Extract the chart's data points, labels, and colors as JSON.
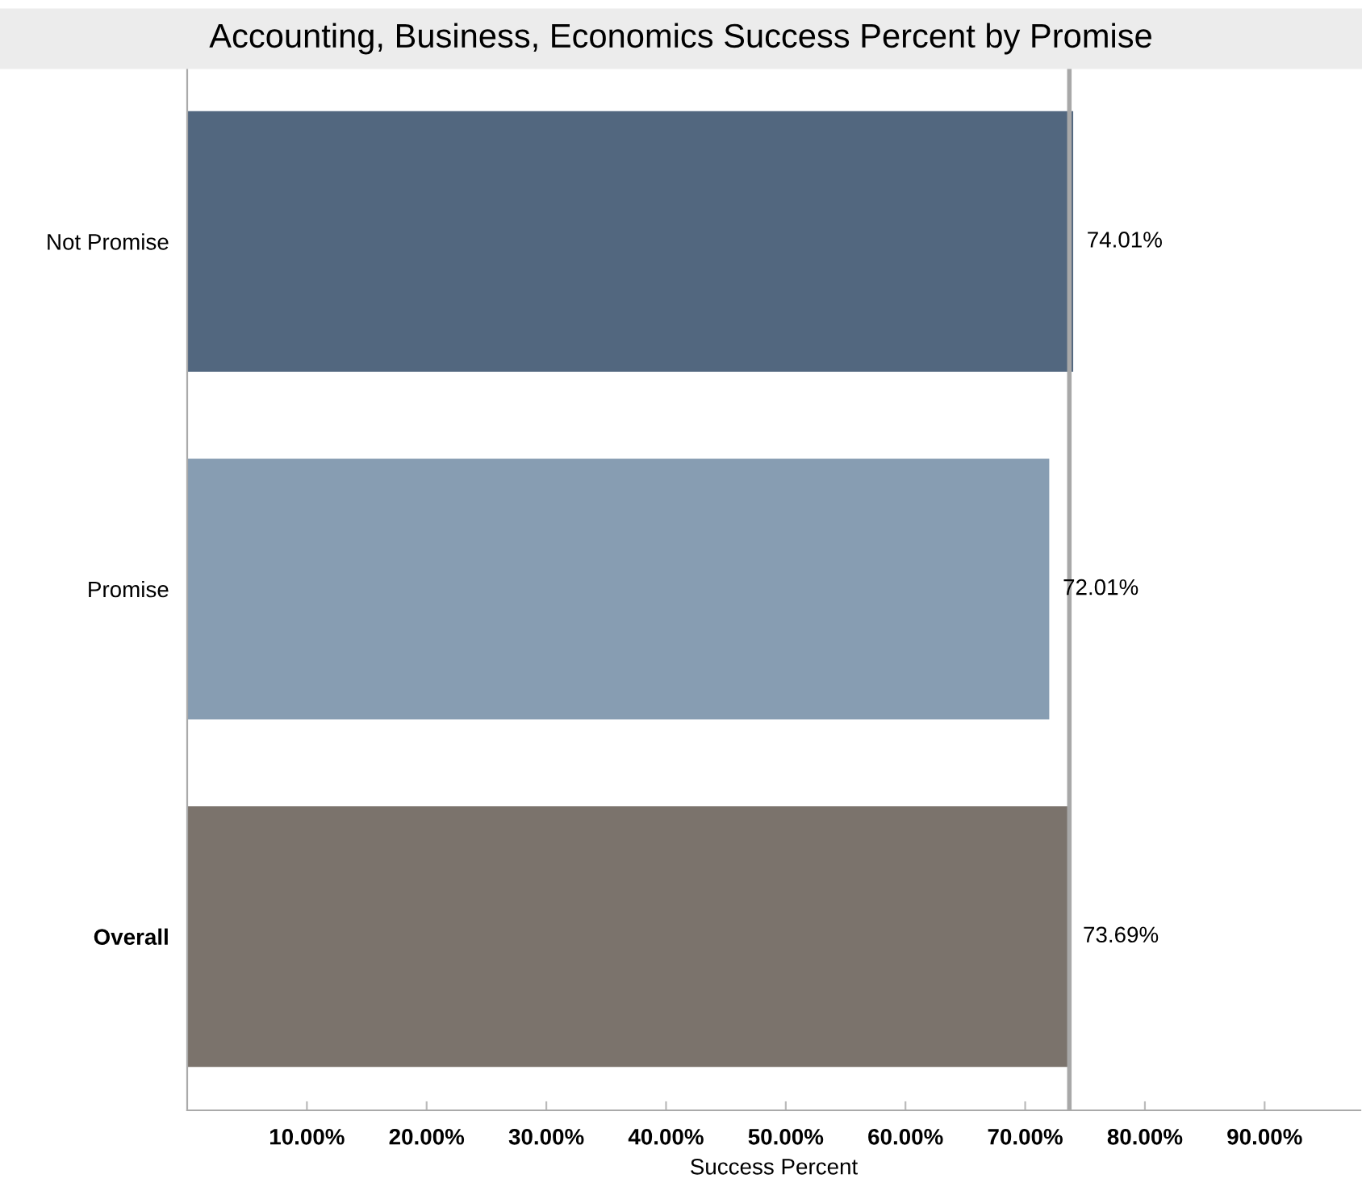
{
  "chart_data": {
    "type": "bar",
    "orientation": "horizontal",
    "title": "Accounting, Business, Economics Success Percent by Promise",
    "xlabel": "Success Percent",
    "categories": [
      "Not Promise",
      "Promise",
      "Overall"
    ],
    "values": [
      74.01,
      72.01,
      73.69
    ],
    "colors": [
      "#52677f",
      "#879db2",
      "#7b736c"
    ],
    "value_labels": [
      "74.01%",
      "72.01%",
      "73.69%"
    ],
    "xlim": [
      0,
      98
    ],
    "xticks": [
      {
        "value": 10,
        "label": "10.00%"
      },
      {
        "value": 20,
        "label": "20.00%"
      },
      {
        "value": 30,
        "label": "30.00%"
      },
      {
        "value": 40,
        "label": "40.00%"
      },
      {
        "value": 50,
        "label": "50.00%"
      },
      {
        "value": 60,
        "label": "60.00%"
      },
      {
        "value": 70,
        "label": "70.00%"
      },
      {
        "value": 80,
        "label": "80.00%"
      },
      {
        "value": 90,
        "label": "90.00%"
      }
    ],
    "ref_lines": [
      {
        "axis": "x",
        "value": 73.69,
        "color": "#a8a8a8"
      }
    ],
    "grid": false,
    "legend": false
  }
}
